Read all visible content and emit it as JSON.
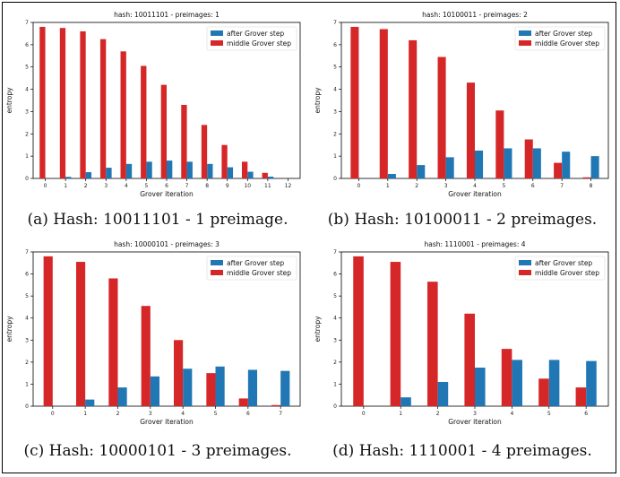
{
  "colors": {
    "after": "#2077b4",
    "middle": "#d62728",
    "axis": "#000000"
  },
  "chart_data": [
    {
      "type": "bar",
      "title": "hash: 10011101 - preimages: 1",
      "caption": "(a) Hash: 10011101 - 1 preimage.",
      "xlabel": "Grover iteration",
      "ylabel": "entropy",
      "ylim": [
        0,
        7
      ],
      "yticks": [
        "0",
        "1",
        "2",
        "3",
        "4",
        "5",
        "6",
        "7"
      ],
      "categories": [
        "0",
        "1",
        "2",
        "3",
        "4",
        "5",
        "6",
        "7",
        "8",
        "9",
        "10",
        "11",
        "12"
      ],
      "legend": [
        "after Grover step",
        "middle Grover step"
      ],
      "legend_position": "top-right",
      "series": [
        {
          "name": "middle Grover step",
          "values": [
            6.8,
            6.75,
            6.6,
            6.25,
            5.7,
            5.05,
            4.2,
            3.3,
            2.4,
            1.5,
            0.75,
            0.25,
            0
          ]
        },
        {
          "name": "after Grover step",
          "values": [
            0,
            0.07,
            0.28,
            0.48,
            0.65,
            0.75,
            0.8,
            0.75,
            0.65,
            0.5,
            0.3,
            0.08,
            0
          ]
        }
      ]
    },
    {
      "type": "bar",
      "title": "hash: 10100011 - preimages: 2",
      "caption": "(b) Hash: 10100011 - 2 preimages.",
      "xlabel": "Grover iteration",
      "ylabel": "entropy",
      "ylim": [
        0,
        7
      ],
      "yticks": [
        "0",
        "1",
        "2",
        "3",
        "4",
        "5",
        "6",
        "7"
      ],
      "categories": [
        "0",
        "1",
        "2",
        "3",
        "4",
        "5",
        "6",
        "7",
        "8"
      ],
      "legend": [
        "after Grover step",
        "middle Grover step"
      ],
      "legend_position": "top-right",
      "series": [
        {
          "name": "middle Grover step",
          "values": [
            6.8,
            6.7,
            6.2,
            5.45,
            4.3,
            3.05,
            1.75,
            0.7,
            0.05
          ]
        },
        {
          "name": "after Grover step",
          "values": [
            0,
            0.2,
            0.6,
            0.95,
            1.25,
            1.35,
            1.35,
            1.2,
            1.0
          ]
        }
      ]
    },
    {
      "type": "bar",
      "title": "hash: 10000101 - preimages: 3",
      "caption": "(c) Hash: 10000101 - 3 preimages.",
      "xlabel": "Grover iteration",
      "ylabel": "entropy",
      "ylim": [
        0,
        7
      ],
      "yticks": [
        "0",
        "1",
        "2",
        "3",
        "4",
        "5",
        "6",
        "7"
      ],
      "categories": [
        "0",
        "1",
        "2",
        "3",
        "4",
        "5",
        "6",
        "7"
      ],
      "legend": [
        "after Grover step",
        "middle Grover step"
      ],
      "legend_position": "top-right",
      "series": [
        {
          "name": "middle Grover step",
          "values": [
            6.8,
            6.55,
            5.8,
            4.55,
            3.0,
            1.5,
            0.35,
            0.05
          ]
        },
        {
          "name": "after Grover step",
          "values": [
            0,
            0.3,
            0.85,
            1.35,
            1.7,
            1.8,
            1.65,
            1.6
          ]
        }
      ]
    },
    {
      "type": "bar",
      "title": "hash: 1110001 - preimages: 4",
      "caption": "(d) Hash: 1110001 - 4 preimages.",
      "xlabel": "Grover iteration",
      "ylabel": "entropy",
      "ylim": [
        0,
        7
      ],
      "yticks": [
        "0",
        "1",
        "2",
        "3",
        "4",
        "5",
        "6",
        "7"
      ],
      "categories": [
        "0",
        "1",
        "2",
        "3",
        "4",
        "5",
        "6"
      ],
      "legend": [
        "after Grover step",
        "middle Grover step"
      ],
      "legend_position": "top-right",
      "series": [
        {
          "name": "middle Grover step",
          "values": [
            6.8,
            6.55,
            5.65,
            4.2,
            2.6,
            1.25,
            0.85
          ]
        },
        {
          "name": "after Grover step",
          "values": [
            0,
            0.4,
            1.1,
            1.75,
            2.1,
            2.1,
            2.05
          ]
        }
      ]
    }
  ]
}
